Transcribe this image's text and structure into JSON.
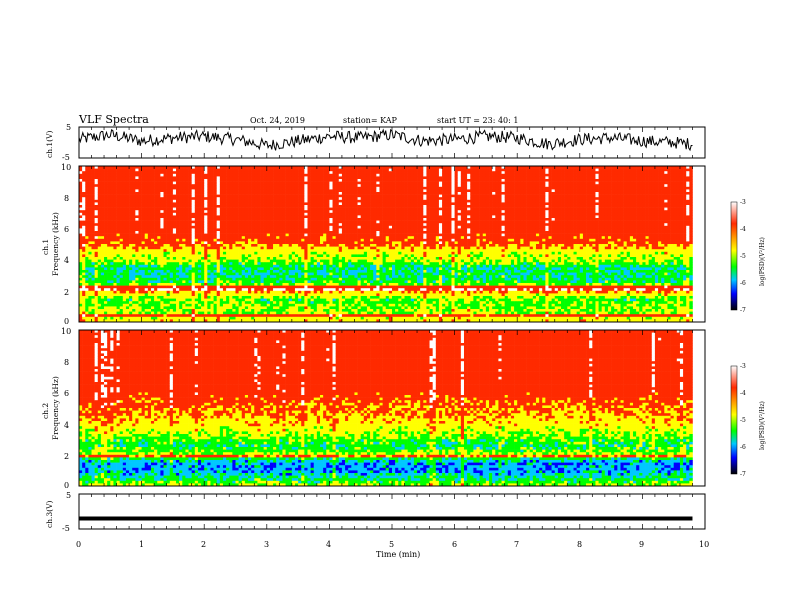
{
  "header": {
    "title": "VLF Spectra",
    "date": "Oct. 24, 2019",
    "station": "station= KAP",
    "start": "start  UT  =   23: 40: 1"
  },
  "panels": {
    "ch1_wave": {
      "ylabel": "ch.1(V)"
    },
    "ch1_spec": {
      "ylabel_line1": "ch.1",
      "ylabel_line2": "Frequency  (kHz)"
    },
    "ch2_spec": {
      "ylabel_line1": "ch.2",
      "ylabel_line2": "Frequency  (kHz)"
    },
    "ch3_wave": {
      "ylabel": "ch.3(V)"
    }
  },
  "colorbar": {
    "label": "log(PSD)(V²/Hz)",
    "ticks": [
      "-3",
      "-4",
      "-5",
      "-6",
      "-7"
    ],
    "colors": [
      "#ffffff",
      "#ff2a00",
      "#ffff00",
      "#00ff00",
      "#00c8ff",
      "#0000ff",
      "#000000"
    ]
  },
  "chart_data": [
    {
      "type": "line",
      "name": "ch.1 waveform",
      "ylabel": "ch.1(V)",
      "xlim": [
        0,
        10
      ],
      "ylim": [
        -5,
        5
      ],
      "y_ticklabels": [
        "5",
        "-5"
      ],
      "x_end": 9.8,
      "x": [
        0,
        0.5,
        1,
        1.5,
        2,
        2.5,
        3,
        3.5,
        4,
        4.5,
        5,
        5.5,
        6,
        6.5,
        7,
        7.5,
        8,
        8.5,
        9,
        9.5,
        9.8
      ],
      "y": [
        1.0,
        2.5,
        0.5,
        1.5,
        2.0,
        1.0,
        -1.0,
        0.5,
        2.0,
        1.5,
        2.5,
        0.5,
        1.0,
        2.0,
        1.5,
        -0.5,
        1.0,
        1.5,
        0.5,
        0.0,
        -0.5
      ],
      "y_spread": 2.0
    },
    {
      "type": "heatmap",
      "name": "ch.1 spectrogram",
      "ylabel": "Frequency  (kHz)",
      "xlim": [
        0,
        10
      ],
      "ylim": [
        0,
        10
      ],
      "y_ticklabels": [
        "0",
        "2",
        "4",
        "6",
        "8",
        "10"
      ],
      "x_end": 9.8,
      "value_label": "log(PSD)(V²/Hz)",
      "value_range": [
        -7,
        -3
      ],
      "freq_profile_khz": [
        0,
        0.5,
        1,
        1.5,
        2,
        2.5,
        3,
        3.5,
        4,
        4.5,
        5,
        6,
        7,
        8,
        9,
        10
      ],
      "freq_profile_logpsd": [
        -4.6,
        -5.0,
        -5.2,
        -5.3,
        -4.2,
        -5.4,
        -5.6,
        -5.6,
        -5.0,
        -4.8,
        -4.1,
        -3.8,
        -3.8,
        -3.8,
        -3.8,
        -3.8
      ],
      "tone_lines_khz": [
        2.2,
        0.4
      ]
    },
    {
      "type": "heatmap",
      "name": "ch.2 spectrogram",
      "ylabel": "Frequency  (kHz)",
      "xlim": [
        0,
        10
      ],
      "ylim": [
        0,
        10
      ],
      "y_ticklabels": [
        "0",
        "2",
        "4",
        "6",
        "8",
        "10"
      ],
      "x_end": 9.8,
      "value_label": "log(PSD)(V²/Hz)",
      "value_range": [
        -7,
        -3
      ],
      "freq_profile_khz": [
        0,
        0.5,
        1,
        1.5,
        2,
        2.5,
        3,
        3.5,
        4,
        5,
        6,
        7,
        8,
        9,
        10
      ],
      "freq_profile_logpsd": [
        -5.0,
        -5.6,
        -6.0,
        -6.0,
        -5.0,
        -5.5,
        -5.3,
        -4.9,
        -4.6,
        -4.2,
        -3.9,
        -3.8,
        -3.8,
        -3.8,
        -3.8
      ],
      "tone_lines_khz": [
        1.9
      ]
    },
    {
      "type": "line",
      "name": "ch.3 waveform",
      "ylabel": "ch.3(V)",
      "xlabel": "Time  (min)",
      "xlim": [
        0,
        10
      ],
      "ylim": [
        -5,
        5
      ],
      "y_ticklabels": [
        "5",
        "-5"
      ],
      "x_ticklabels": [
        "0",
        "1",
        "2",
        "3",
        "4",
        "5",
        "6",
        "7",
        "8",
        "9",
        "10"
      ],
      "x_end": 9.8,
      "x": [
        0,
        9.8
      ],
      "y": [
        -2.0,
        -2.0
      ]
    }
  ]
}
